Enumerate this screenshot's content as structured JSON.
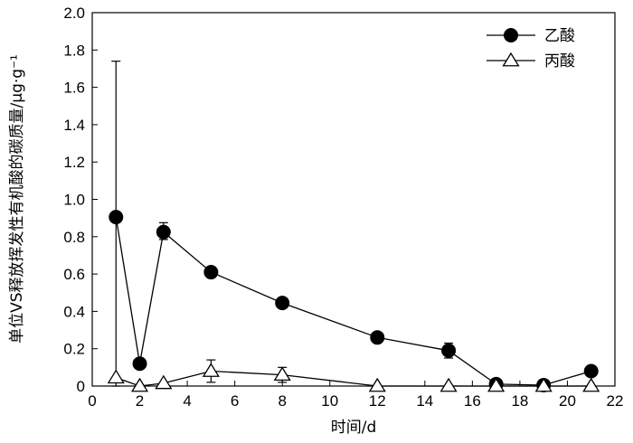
{
  "chart_data": {
    "type": "line",
    "title": "",
    "xlabel": "时间/d",
    "ylabel": "单位VS释放挥发性有机酸的碳质量/μg·g⁻¹",
    "xlim": [
      0,
      22
    ],
    "ylim": [
      0,
      2.0
    ],
    "x_ticks": [
      "0",
      "2",
      "4",
      "6",
      "8",
      "10",
      "12",
      "14",
      "16",
      "18",
      "20",
      "22"
    ],
    "y_ticks": [
      "0",
      "0.2",
      "0.4",
      "0.6",
      "0.8",
      "1.0",
      "1.2",
      "1.4",
      "1.6",
      "1.8",
      "2.0"
    ],
    "grid": false,
    "legend_position": "top-right",
    "series": [
      {
        "name": "乙酸",
        "marker": "filled-circle",
        "color": "#000000",
        "points": [
          {
            "x": 1,
            "y": 0.905,
            "err_low": 0.905,
            "err_high": 0.835
          },
          {
            "x": 2,
            "y": 0.12,
            "err_low": 0.0,
            "err_high": 0.0
          },
          {
            "x": 3,
            "y": 0.825,
            "err_low": 0.04,
            "err_high": 0.05
          },
          {
            "x": 5,
            "y": 0.61,
            "err_low": 0.0,
            "err_high": 0.0
          },
          {
            "x": 8,
            "y": 0.445,
            "err_low": 0.0,
            "err_high": 0.0
          },
          {
            "x": 12,
            "y": 0.26,
            "err_low": 0.0,
            "err_high": 0.0
          },
          {
            "x": 15,
            "y": 0.19,
            "err_low": 0.04,
            "err_high": 0.04
          },
          {
            "x": 17,
            "y": 0.01,
            "err_low": 0.0,
            "err_high": 0.0
          },
          {
            "x": 19,
            "y": 0.005,
            "err_low": 0.0,
            "err_high": 0.0
          },
          {
            "x": 21,
            "y": 0.08,
            "err_low": 0.0,
            "err_high": 0.0
          }
        ]
      },
      {
        "name": "丙酸",
        "marker": "open-triangle",
        "color": "#000000",
        "points": [
          {
            "x": 1,
            "y": 0.045,
            "err_low": 0.0,
            "err_high": 0.0
          },
          {
            "x": 2,
            "y": 0.0,
            "err_low": 0.0,
            "err_high": 0.0
          },
          {
            "x": 3,
            "y": 0.015,
            "err_low": 0.0,
            "err_high": 0.0
          },
          {
            "x": 5,
            "y": 0.08,
            "err_low": 0.06,
            "err_high": 0.06
          },
          {
            "x": 8,
            "y": 0.06,
            "err_low": 0.04,
            "err_high": 0.04
          },
          {
            "x": 12,
            "y": 0.0,
            "err_low": 0.0,
            "err_high": 0.0
          },
          {
            "x": 15,
            "y": 0.0,
            "err_low": 0.0,
            "err_high": 0.0
          },
          {
            "x": 17,
            "y": 0.0,
            "err_low": 0.0,
            "err_high": 0.0
          },
          {
            "x": 19,
            "y": 0.0,
            "err_low": 0.0,
            "err_high": 0.0
          },
          {
            "x": 21,
            "y": 0.0,
            "err_low": 0.0,
            "err_high": 0.0
          }
        ]
      }
    ]
  }
}
